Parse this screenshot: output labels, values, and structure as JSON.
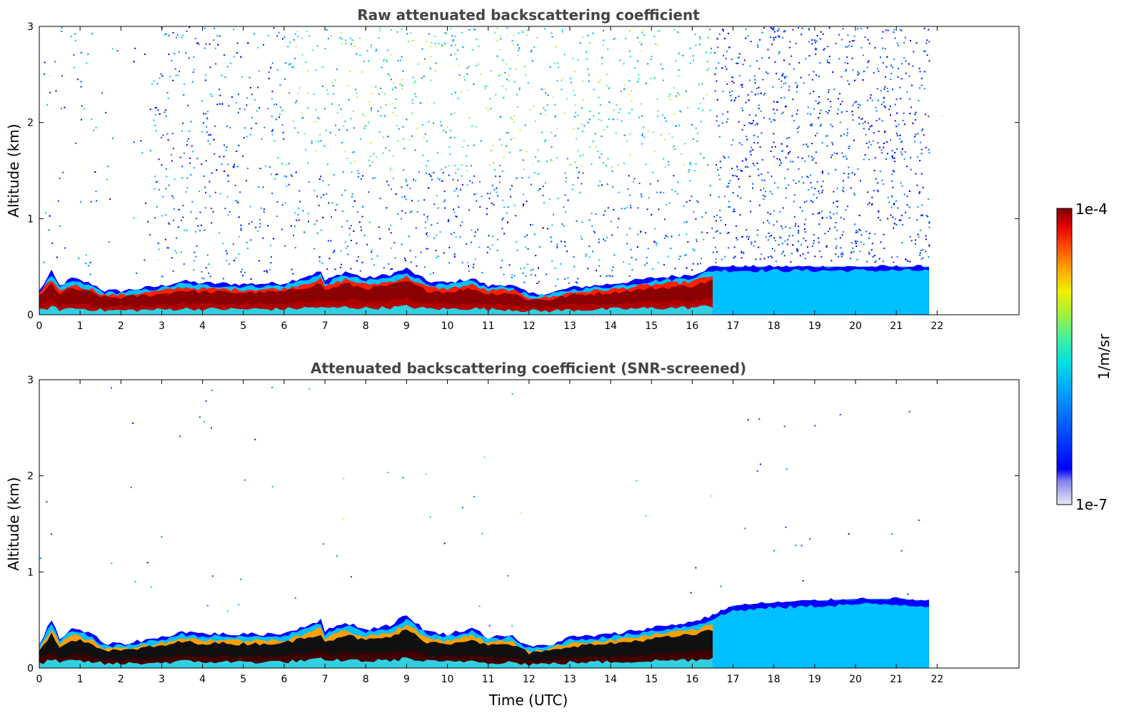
{
  "chart_data": [
    {
      "type": "heatmap",
      "title": "Raw attenuated backscattering coefficient",
      "xlabel": "",
      "ylabel": "Altitude (km)",
      "xlim": [
        0,
        24
      ],
      "ylim": [
        0,
        3
      ],
      "xticks": [
        "0",
        "1",
        "2",
        "3",
        "4",
        "5",
        "6",
        "7",
        "8",
        "9",
        "10",
        "11",
        "12",
        "13",
        "14",
        "15",
        "16",
        "17",
        "18",
        "19",
        "20",
        "21",
        "22"
      ],
      "yticks": [
        "0",
        "1",
        "2",
        "3"
      ],
      "data_time_end": 21.8,
      "boundary_layer_top_km": [
        [
          0,
          0.25
        ],
        [
          0.3,
          0.45
        ],
        [
          0.5,
          0.3
        ],
        [
          0.8,
          0.38
        ],
        [
          1.3,
          0.32
        ],
        [
          1.6,
          0.25
        ],
        [
          2,
          0.25
        ],
        [
          3,
          0.3
        ],
        [
          3.5,
          0.35
        ],
        [
          4,
          0.33
        ],
        [
          5,
          0.32
        ],
        [
          6,
          0.33
        ],
        [
          6.9,
          0.45
        ],
        [
          7,
          0.35
        ],
        [
          7.5,
          0.45
        ],
        [
          8,
          0.38
        ],
        [
          8.6,
          0.42
        ],
        [
          9,
          0.48
        ],
        [
          9.5,
          0.35
        ],
        [
          10,
          0.33
        ],
        [
          10.6,
          0.38
        ],
        [
          11,
          0.3
        ],
        [
          11.5,
          0.32
        ],
        [
          12,
          0.22
        ],
        [
          12.5,
          0.22
        ],
        [
          13,
          0.28
        ],
        [
          14,
          0.32
        ],
        [
          15,
          0.38
        ],
        [
          16,
          0.42
        ],
        [
          16.5,
          0.5
        ]
      ],
      "colorbar": {
        "label": "1/m/sr",
        "min_label": "1e-7",
        "max_label": "1e-4"
      }
    },
    {
      "type": "heatmap",
      "title": "Attenuated backscattering coefficient (SNR-screened)",
      "xlabel": "Time (UTC)",
      "ylabel": "Altitude (km)",
      "xlim": [
        0,
        24
      ],
      "ylim": [
        0,
        3
      ],
      "xticks": [
        "0",
        "1",
        "2",
        "3",
        "4",
        "5",
        "6",
        "7",
        "8",
        "9",
        "10",
        "11",
        "12",
        "13",
        "14",
        "15",
        "16",
        "17",
        "18",
        "19",
        "20",
        "21",
        "22"
      ],
      "yticks": [
        "0",
        "1",
        "2",
        "3"
      ],
      "data_time_end": 21.8,
      "boundary_layer_top_km": [
        [
          0,
          0.25
        ],
        [
          0.3,
          0.5
        ],
        [
          0.5,
          0.3
        ],
        [
          0.8,
          0.42
        ],
        [
          1.3,
          0.35
        ],
        [
          1.6,
          0.25
        ],
        [
          2,
          0.25
        ],
        [
          3,
          0.32
        ],
        [
          3.5,
          0.38
        ],
        [
          4,
          0.36
        ],
        [
          5,
          0.35
        ],
        [
          6,
          0.36
        ],
        [
          6.9,
          0.5
        ],
        [
          7,
          0.38
        ],
        [
          7.5,
          0.48
        ],
        [
          8,
          0.4
        ],
        [
          8.6,
          0.45
        ],
        [
          9,
          0.55
        ],
        [
          9.5,
          0.38
        ],
        [
          10,
          0.35
        ],
        [
          10.6,
          0.42
        ],
        [
          11,
          0.32
        ],
        [
          11.5,
          0.35
        ],
        [
          12,
          0.22
        ],
        [
          12.5,
          0.24
        ],
        [
          13,
          0.32
        ],
        [
          14,
          0.35
        ],
        [
          15,
          0.42
        ],
        [
          16,
          0.48
        ],
        [
          16.5,
          0.55
        ],
        [
          17,
          0.65
        ],
        [
          18,
          0.68
        ],
        [
          19,
          0.7
        ],
        [
          20,
          0.72
        ],
        [
          21,
          0.72
        ],
        [
          21.8,
          0.7
        ]
      ]
    }
  ],
  "colorbar": {
    "label": "1/m/sr",
    "max_label": "1e-4",
    "min_label": "1e-7",
    "colors": [
      "#e8e8f8",
      "#b8b8f0",
      "#8080f0",
      "#0000ff",
      "#0050ff",
      "#00a0ff",
      "#00e0e0",
      "#40f0a0",
      "#a0f040",
      "#f0f000",
      "#ffa000",
      "#ff4000",
      "#e00000",
      "#800000"
    ]
  }
}
